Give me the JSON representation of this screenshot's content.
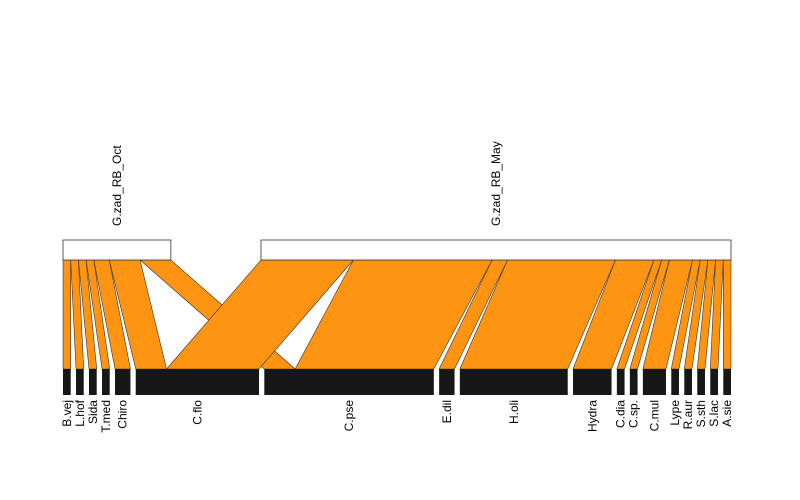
{
  "chart_data": {
    "type": "bipartite",
    "higher_level": [
      {
        "name": "G.zad_RB_Oct"
      },
      {
        "name": "G.zad_RB_May"
      }
    ],
    "lower_level": [
      {
        "name": "B.vej"
      },
      {
        "name": "L.hof"
      },
      {
        "name": "Sida"
      },
      {
        "name": "T.med"
      },
      {
        "name": "Chiro"
      },
      {
        "name": "C.flo"
      },
      {
        "name": "C.pse"
      },
      {
        "name": "E.dil"
      },
      {
        "name": "H.oli"
      },
      {
        "name": "Hydra"
      },
      {
        "name": "C.dia"
      },
      {
        "name": "C.sp."
      },
      {
        "name": "C.mul"
      },
      {
        "name": "Lype"
      },
      {
        "name": "R.aur"
      },
      {
        "name": "S.sth"
      },
      {
        "name": "S.lac"
      },
      {
        "name": "A.sie"
      }
    ],
    "interactions": [
      {
        "from": "G.zad_RB_Oct",
        "to": "B.vej",
        "value": 1
      },
      {
        "from": "G.zad_RB_Oct",
        "to": "L.hof",
        "value": 1
      },
      {
        "from": "G.zad_RB_Oct",
        "to": "Sida",
        "value": 1
      },
      {
        "from": "G.zad_RB_Oct",
        "to": "T.med",
        "value": 1
      },
      {
        "from": "G.zad_RB_Oct",
        "to": "Chiro",
        "value": 2
      },
      {
        "from": "G.zad_RB_Oct",
        "to": "C.flo",
        "value": 4
      },
      {
        "from": "G.zad_RB_Oct",
        "to": "C.pse",
        "value": 4
      },
      {
        "from": "G.zad_RB_May",
        "to": "C.flo",
        "value": 12
      },
      {
        "from": "G.zad_RB_May",
        "to": "C.pse",
        "value": 18
      },
      {
        "from": "G.zad_RB_May",
        "to": "E.dil",
        "value": 2
      },
      {
        "from": "G.zad_RB_May",
        "to": "H.oli",
        "value": 14
      },
      {
        "from": "G.zad_RB_May",
        "to": "Hydra",
        "value": 5
      },
      {
        "from": "G.zad_RB_May",
        "to": "C.dia",
        "value": 1
      },
      {
        "from": "G.zad_RB_May",
        "to": "C.sp.",
        "value": 1
      },
      {
        "from": "G.zad_RB_May",
        "to": "C.mul",
        "value": 3
      },
      {
        "from": "G.zad_RB_May",
        "to": "Lype",
        "value": 1
      },
      {
        "from": "G.zad_RB_May",
        "to": "R.aur",
        "value": 1
      },
      {
        "from": "G.zad_RB_May",
        "to": "S.sth",
        "value": 1
      },
      {
        "from": "G.zad_RB_May",
        "to": "S.lac",
        "value": 1
      },
      {
        "from": "G.zad_RB_May",
        "to": "A.sie",
        "value": 1
      }
    ],
    "colors": {
      "link": "#FF9412",
      "link_stroke": "#333333",
      "lower_box": "#171717",
      "higher_box": "#ffffff",
      "higher_stroke": "#333333"
    },
    "title": ""
  }
}
